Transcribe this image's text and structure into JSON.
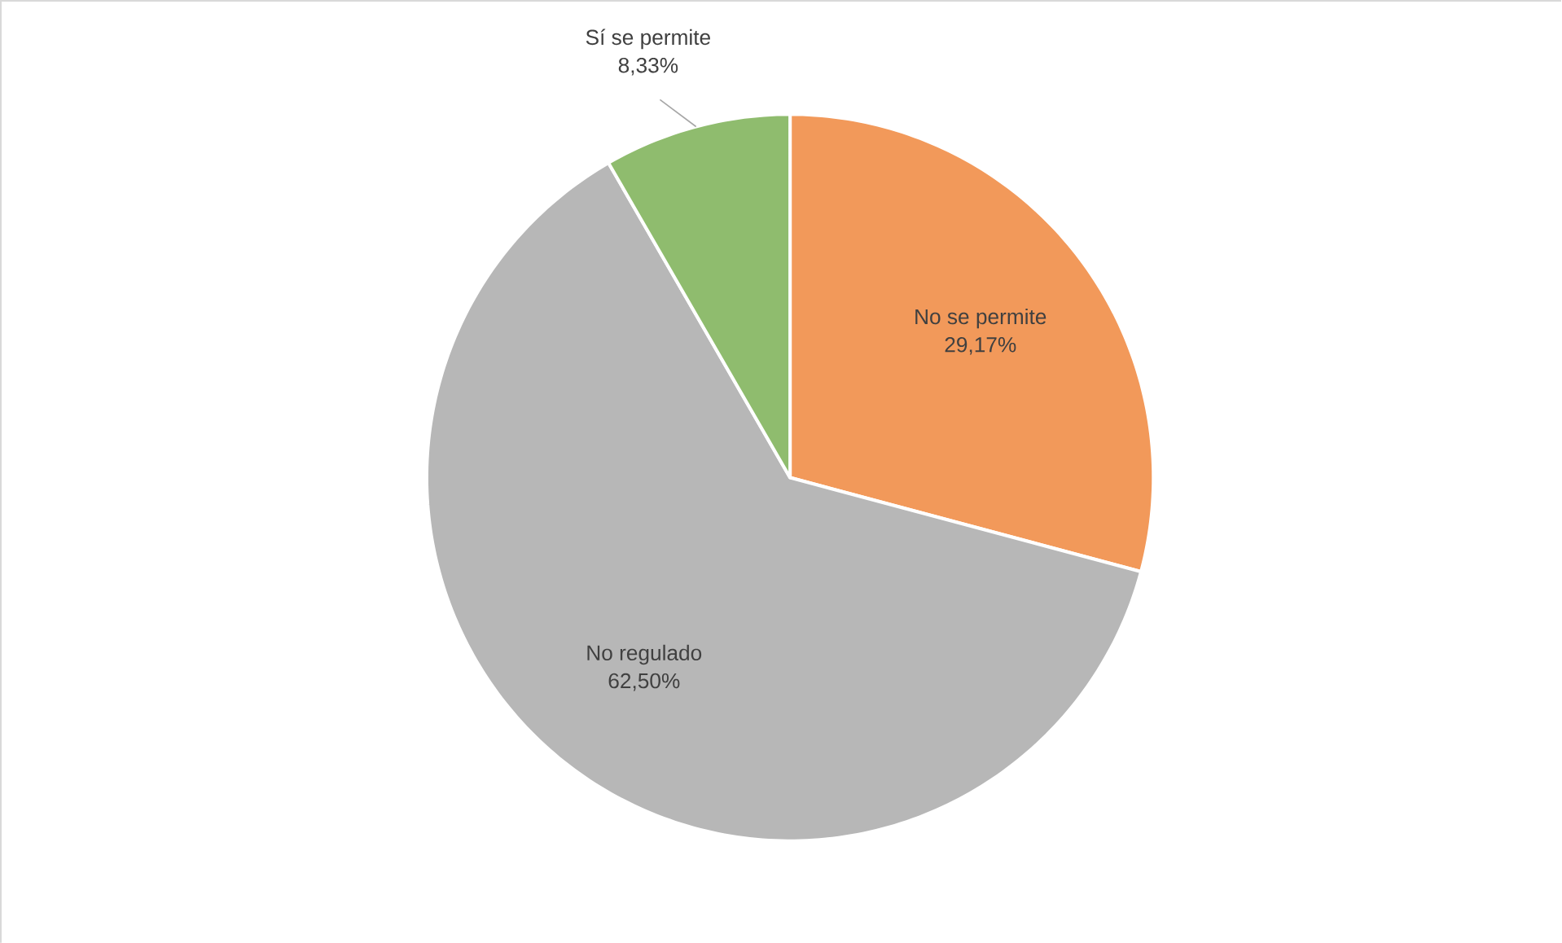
{
  "chart_data": {
    "type": "pie",
    "categories": [
      "No se permite",
      "No regulado",
      "Sí se permite"
    ],
    "values": [
      29.17,
      62.5,
      8.33
    ],
    "value_labels": [
      "29,17%",
      "62,50%",
      "8,33%"
    ],
    "colors": [
      "#f2995a",
      "#b7b7b7",
      "#8fbc6e"
    ]
  }
}
